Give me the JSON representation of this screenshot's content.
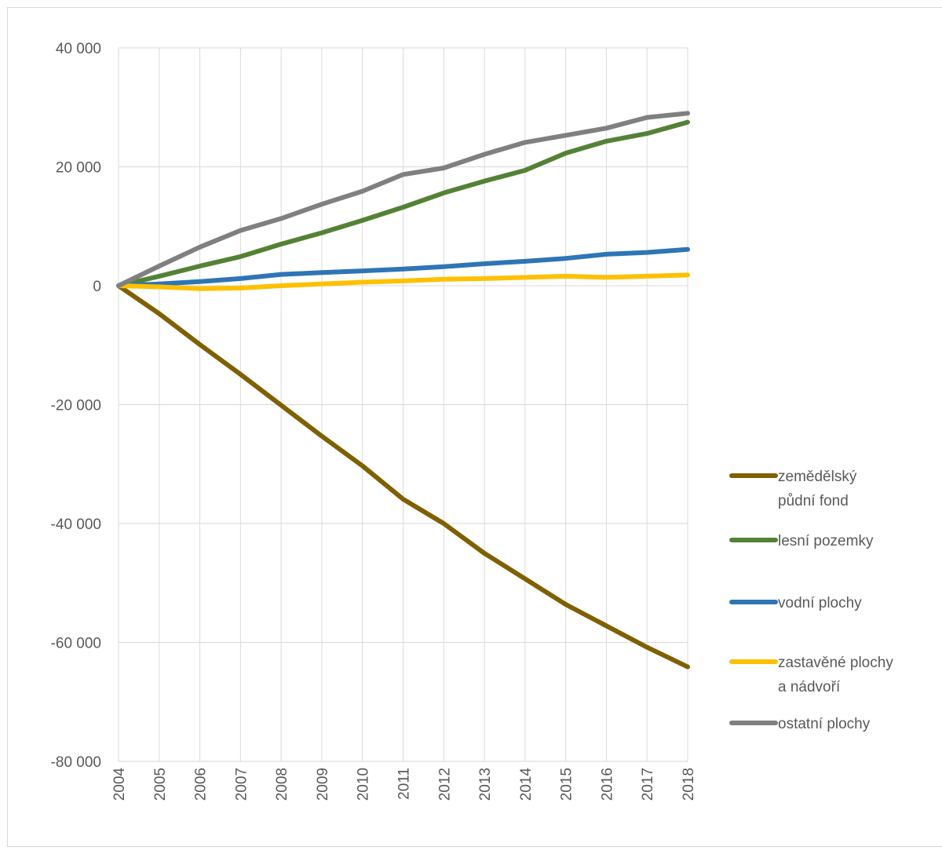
{
  "chart_data": {
    "type": "line",
    "title": "",
    "xlabel": "",
    "ylabel": "",
    "x": [
      "2004",
      "2005",
      "2006",
      "2007",
      "2008",
      "2009",
      "2010",
      "2011",
      "2012",
      "2013",
      "2014",
      "2015",
      "2016",
      "2017",
      "2018"
    ],
    "ylim": [
      -80000,
      40000
    ],
    "yticks": [
      40000,
      20000,
      0,
      -20000,
      -40000,
      -60000,
      -80000
    ],
    "ytick_labels": [
      "40 000",
      "20 000",
      "0",
      "-20 000",
      "-40 000",
      "-60 000",
      "-80 000"
    ],
    "grid": true,
    "legend_position": "right",
    "series": [
      {
        "name": "zemědělský půdní fond",
        "name_lines": [
          "zemědělský",
          "půdní fond"
        ],
        "color": "#7f6000",
        "values": [
          0,
          -4700,
          -9900,
          -14900,
          -20100,
          -25300,
          -30300,
          -35900,
          -40000,
          -45000,
          -49300,
          -53600,
          -57200,
          -60800,
          -64100
        ]
      },
      {
        "name": "lesní pozemky",
        "name_lines": [
          "lesní pozemky"
        ],
        "color": "#548235",
        "values": [
          0,
          1600,
          3300,
          4900,
          7000,
          8900,
          11000,
          13200,
          15600,
          17600,
          19400,
          22300,
          24300,
          25600,
          27500
        ]
      },
      {
        "name": "vodní plochy",
        "name_lines": [
          "vodní plochy"
        ],
        "color": "#2e75b6",
        "values": [
          0,
          300,
          700,
          1200,
          1900,
          2200,
          2500,
          2800,
          3200,
          3700,
          4100,
          4600,
          5300,
          5600,
          6100
        ]
      },
      {
        "name": "zastavěné plochy a nádvoří",
        "name_lines": [
          "zastavěné plochy",
          "a nádvoří"
        ],
        "color": "#ffc000",
        "values": [
          0,
          -200,
          -500,
          -400,
          0,
          300,
          600,
          800,
          1100,
          1200,
          1400,
          1600,
          1400,
          1600,
          1800
        ]
      },
      {
        "name": "ostatní plochy",
        "name_lines": [
          "ostatní plochy"
        ],
        "color": "#808080",
        "values": [
          0,
          3300,
          6500,
          9300,
          11300,
          13700,
          15900,
          18700,
          19800,
          22100,
          24100,
          25300,
          26500,
          28300,
          29000
        ]
      }
    ]
  }
}
